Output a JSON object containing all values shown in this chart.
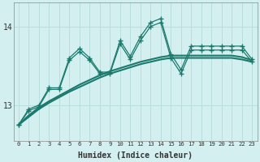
{
  "xlabel": "Humidex (Indice chaleur)",
  "bg_color": "#d4efef",
  "grid_color": "#b8dede",
  "line_color": "#1a7a6e",
  "x_values": [
    0,
    1,
    2,
    3,
    4,
    5,
    6,
    7,
    8,
    9,
    10,
    11,
    12,
    13,
    14,
    15,
    16,
    17,
    18,
    19,
    20,
    21,
    22,
    23
  ],
  "smooth1": [
    12.75,
    12.85,
    12.95,
    13.03,
    13.1,
    13.17,
    13.23,
    13.29,
    13.35,
    13.4,
    13.44,
    13.48,
    13.52,
    13.55,
    13.58,
    13.6,
    13.6,
    13.6,
    13.6,
    13.6,
    13.6,
    13.6,
    13.58,
    13.55
  ],
  "smooth2": [
    12.75,
    12.87,
    12.97,
    13.05,
    13.12,
    13.19,
    13.26,
    13.32,
    13.38,
    13.43,
    13.47,
    13.51,
    13.55,
    13.58,
    13.61,
    13.63,
    13.63,
    13.63,
    13.63,
    13.63,
    13.63,
    13.63,
    13.61,
    13.57
  ],
  "jagged1": [
    12.75,
    12.95,
    13.0,
    13.22,
    13.22,
    13.6,
    13.72,
    13.6,
    13.42,
    13.42,
    13.82,
    13.62,
    13.87,
    14.05,
    14.1,
    13.65,
    13.45,
    13.75,
    13.75,
    13.75,
    13.75,
    13.75,
    13.75,
    13.58
  ],
  "jagged2": [
    12.75,
    12.93,
    12.98,
    13.2,
    13.2,
    13.57,
    13.68,
    13.57,
    13.4,
    13.4,
    13.78,
    13.58,
    13.82,
    14.0,
    14.05,
    13.6,
    13.4,
    13.7,
    13.7,
    13.7,
    13.7,
    13.7,
    13.7,
    13.55
  ],
  "ylim": [
    12.55,
    14.3
  ],
  "yticks": [
    13,
    14
  ],
  "xtick_labels": [
    "0",
    "1",
    "2",
    "3",
    "4",
    "5",
    "6",
    "7",
    "8",
    "9",
    "10",
    "11",
    "12",
    "13",
    "14",
    "15",
    "16",
    "17",
    "18",
    "19",
    "20",
    "21",
    "22",
    "23"
  ]
}
